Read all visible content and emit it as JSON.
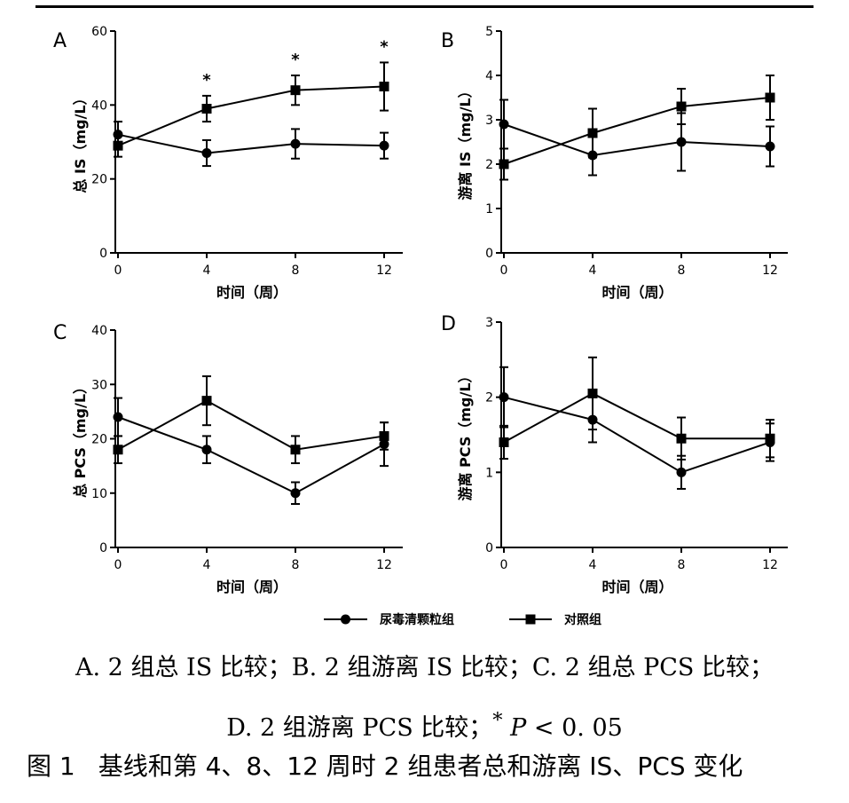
{
  "chart_data": [
    {
      "panel": "A",
      "type": "line",
      "ylabel": "总 IS（mg/L）",
      "xlabel": "时间（周）",
      "ylim": [
        0,
        60
      ],
      "yticks": [
        0,
        20,
        40,
        60
      ],
      "x": [
        0,
        4,
        8,
        12
      ],
      "xticks": [
        "0",
        "4",
        "8",
        "12"
      ],
      "grid": false,
      "series": [
        {
          "name": "尿毒清颗粒组",
          "marker": "circle",
          "values": [
            32,
            27,
            29.5,
            29
          ],
          "errors": [
            3.5,
            3.5,
            4,
            3.5
          ]
        },
        {
          "name": "对照组",
          "marker": "square",
          "values": [
            29,
            39,
            44,
            45
          ],
          "errors": [
            3,
            3.5,
            4,
            6.5
          ]
        }
      ],
      "significance": [
        4,
        8,
        12
      ],
      "significance_mark": "*"
    },
    {
      "panel": "B",
      "type": "line",
      "ylabel": "游离 IS（mg/L）",
      "xlabel": "时间（周）",
      "ylim": [
        0,
        5
      ],
      "yticks": [
        0,
        1,
        2,
        3,
        4,
        5
      ],
      "x": [
        0,
        4,
        8,
        12
      ],
      "xticks": [
        "0",
        "4",
        "8",
        "12"
      ],
      "grid": false,
      "series": [
        {
          "name": "尿毒清颗粒组",
          "marker": "circle",
          "values": [
            2.9,
            2.2,
            2.5,
            2.4
          ],
          "errors": [
            0.55,
            0.45,
            0.65,
            0.45
          ]
        },
        {
          "name": "对照组",
          "marker": "square",
          "values": [
            2.0,
            2.7,
            3.3,
            3.5
          ],
          "errors": [
            0.35,
            0.55,
            0.4,
            0.5
          ]
        }
      ]
    },
    {
      "panel": "C",
      "type": "line",
      "ylabel": "总 PCS（mg/L）",
      "xlabel": "时间（周）",
      "ylim": [
        0,
        40
      ],
      "yticks": [
        0,
        10,
        20,
        30,
        40
      ],
      "x": [
        0,
        4,
        8,
        12
      ],
      "xticks": [
        "0",
        "4",
        "8",
        "12"
      ],
      "grid": false,
      "series": [
        {
          "name": "尿毒清颗粒组",
          "marker": "circle",
          "values": [
            24,
            18,
            10,
            19
          ],
          "errors": [
            3.5,
            2.5,
            2,
            4
          ]
        },
        {
          "name": "对照组",
          "marker": "square",
          "values": [
            18,
            27,
            18,
            20.5
          ],
          "errors": [
            2.5,
            4.5,
            2.5,
            2.5
          ]
        }
      ]
    },
    {
      "panel": "D",
      "type": "line",
      "ylabel": "游离 PCS（mg/L）",
      "xlabel": "时间（周）",
      "ylim": [
        0,
        3
      ],
      "yticks": [
        0,
        1,
        2,
        3
      ],
      "x": [
        0,
        4,
        8,
        12
      ],
      "xticks": [
        "0",
        "4",
        "8",
        "12"
      ],
      "grid": false,
      "series": [
        {
          "name": "尿毒清颗粒组",
          "marker": "circle",
          "values": [
            2.0,
            1.7,
            1.0,
            1.4
          ],
          "errors": [
            0.4,
            0.3,
            0.22,
            0.25
          ]
        },
        {
          "name": "对照组",
          "marker": "square",
          "values": [
            1.4,
            2.05,
            1.45,
            1.45
          ],
          "errors": [
            0.22,
            0.48,
            0.28,
            0.25
          ]
        }
      ]
    }
  ],
  "legend": {
    "placement": "bottom",
    "items": [
      {
        "label": "尿毒清颗粒组",
        "marker": "circle"
      },
      {
        "label": "对照组",
        "marker": "square"
      }
    ]
  },
  "caption": {
    "line1": "A. 2 组总 IS 比较；B. 2 组游离 IS 比较；C. 2 组总 PCS 比较；",
    "line2_prefix": "D. 2 组游离 PCS 比较；",
    "line2_star": "*",
    "line2_p": "P",
    "line2_suffix": " < 0. 05"
  },
  "figure_title": {
    "number": "图 1",
    "text": "基线和第 4、8、12 周时 2 组患者总和游离 IS、PCS 变化"
  },
  "colors": {
    "ink": "#000000",
    "background": "#ffffff"
  }
}
